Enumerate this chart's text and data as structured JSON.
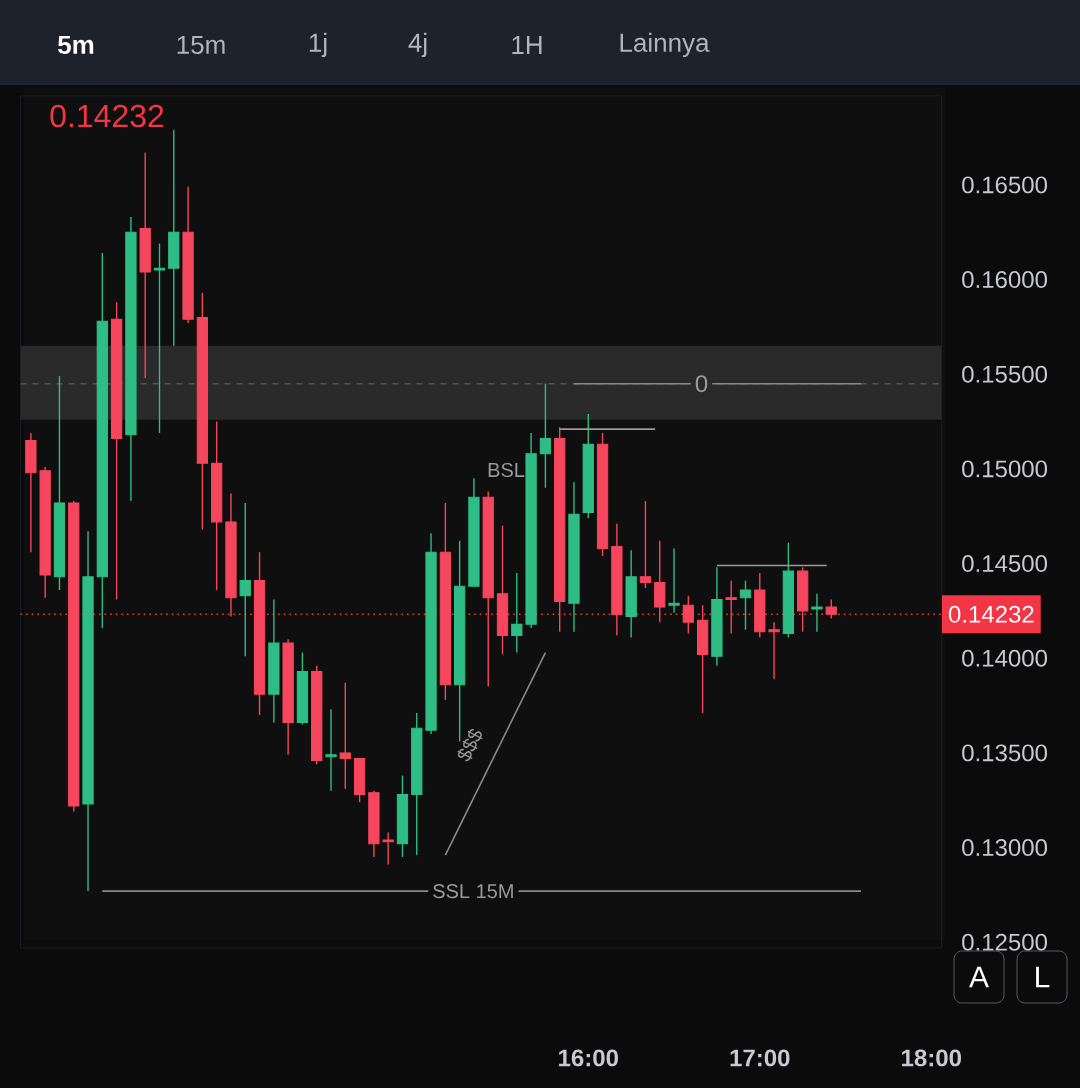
{
  "chart_data": {
    "type": "candlestick",
    "series": [
      {
        "x": [
          12.75,
          12.8333,
          12.9167,
          13,
          13.0833,
          13.1667,
          13.25,
          13.3333,
          13.4167,
          13.5,
          13.5833,
          13.6667,
          13.75,
          13.8333,
          13.9167,
          14,
          14.0833,
          14.1667,
          14.25,
          14.3333,
          14.4167,
          14.5,
          14.5833,
          14.6667,
          14.75,
          14.8333,
          14.9167,
          15,
          15.0833,
          15.1667,
          15.25,
          15.3333,
          15.4167,
          15.5,
          15.5833,
          15.6667,
          15.75,
          15.8333,
          15.9167,
          16,
          16.0833,
          16.1667,
          16.25,
          16.3333,
          16.4167,
          16.5,
          16.5833,
          16.6667,
          16.75,
          16.8333,
          16.9167,
          17,
          17.0833,
          17.1667,
          17.25,
          17.3333,
          17.4167
        ],
        "ohlc": [
          [
            0.1515,
            0.1519,
            0.1456,
            0.1498
          ],
          [
            0.1499,
            0.1501,
            0.1432,
            0.1444
          ],
          [
            0.1443,
            0.1549,
            0.1436,
            0.1482
          ],
          [
            0.1482,
            0.1483,
            0.1319,
            0.1322
          ],
          [
            0.1323,
            0.1467,
            0.1277,
            0.1443
          ],
          [
            0.1443,
            0.1614,
            0.1416,
            0.1578
          ],
          [
            0.1579,
            0.1588,
            0.1431,
            0.1516
          ],
          [
            0.1518,
            0.1633,
            0.1483,
            0.1625
          ],
          [
            0.1627,
            0.1667,
            0.1548,
            0.1604
          ],
          [
            0.1605,
            0.1619,
            0.1519,
            0.1606
          ],
          [
            0.1606,
            0.1679,
            0.1565,
            0.1625
          ],
          [
            0.1625,
            0.1649,
            0.1577,
            0.1579
          ],
          [
            0.158,
            0.1593,
            0.1468,
            0.1503
          ],
          [
            0.1503,
            0.1525,
            0.1436,
            0.1472
          ],
          [
            0.1472,
            0.1487,
            0.1422,
            0.1432
          ],
          [
            0.1433,
            0.1482,
            0.1401,
            0.1441
          ],
          [
            0.1441,
            0.1456,
            0.137,
            0.1381
          ],
          [
            0.1381,
            0.1431,
            0.1366,
            0.1408
          ],
          [
            0.1408,
            0.141,
            0.1349,
            0.1366
          ],
          [
            0.1366,
            0.1403,
            0.1365,
            0.1393
          ],
          [
            0.1393,
            0.1396,
            0.1344,
            0.1346
          ],
          [
            0.1348,
            0.1373,
            0.133,
            0.1349
          ],
          [
            0.135,
            0.1387,
            0.1331,
            0.1347
          ],
          [
            0.1347,
            0.1347,
            0.1324,
            0.1328
          ],
          [
            0.1329,
            0.133,
            0.1295,
            0.1302
          ],
          [
            0.1304,
            0.1308,
            0.1291,
            0.1303
          ],
          [
            0.1302,
            0.1338,
            0.1295,
            0.1328
          ],
          [
            0.1328,
            0.1371,
            0.1296,
            0.1363
          ],
          [
            0.1362,
            0.1466,
            0.136,
            0.1456
          ],
          [
            0.1456,
            0.1482,
            0.1378,
            0.1386
          ],
          [
            0.1386,
            0.1462,
            0.1356,
            0.1438
          ],
          [
            0.1438,
            0.1495,
            0.1438,
            0.1485
          ],
          [
            0.1485,
            0.1488,
            0.1385,
            0.1432
          ],
          [
            0.1434,
            0.147,
            0.1402,
            0.1412
          ],
          [
            0.1412,
            0.1445,
            0.1403,
            0.1418
          ],
          [
            0.1418,
            0.1519,
            0.1416,
            0.1508
          ],
          [
            0.1508,
            0.1545,
            0.149,
            0.1516
          ],
          [
            0.1516,
            0.1522,
            0.1414,
            0.143
          ],
          [
            0.1429,
            0.1493,
            0.1414,
            0.1476
          ],
          [
            0.1477,
            0.1529,
            0.1474,
            0.1513
          ],
          [
            0.1513,
            0.1519,
            0.1454,
            0.1458
          ],
          [
            0.1459,
            0.1471,
            0.1412,
            0.1423
          ],
          [
            0.1422,
            0.1457,
            0.1411,
            0.1443
          ],
          [
            0.1443,
            0.1483,
            0.1437,
            0.144
          ],
          [
            0.144,
            0.1462,
            0.1419,
            0.1427
          ],
          [
            0.1428,
            0.1458,
            0.1424,
            0.1429
          ],
          [
            0.1428,
            0.1433,
            0.1413,
            0.1419
          ],
          [
            0.142,
            0.1428,
            0.1371,
            0.1402
          ],
          [
            0.1401,
            0.1448,
            0.1396,
            0.1431
          ],
          [
            0.1432,
            0.1441,
            0.1413,
            0.1431
          ],
          [
            0.1432,
            0.1441,
            0.1415,
            0.1436
          ],
          [
            0.1436,
            0.1445,
            0.1411,
            0.1414
          ],
          [
            0.1415,
            0.1419,
            0.1389,
            0.1414
          ],
          [
            0.1413,
            0.1461,
            0.1411,
            0.1446
          ],
          [
            0.1446,
            0.1448,
            0.1414,
            0.1425
          ],
          [
            0.1426,
            0.1434,
            0.1414,
            0.1427
          ],
          [
            0.1427,
            0.1431,
            0.1421,
            0.14232
          ]
        ],
        "colors": [
          "#f6465d",
          "#f6465d",
          "#2ebd85",
          "#f6465d",
          "#2ebd85",
          "#2ebd85",
          "#f6465d",
          "#2ebd85",
          "#f6465d",
          "#2ebd85",
          "#2ebd85",
          "#f6465d",
          "#f6465d",
          "#f6465d",
          "#f6465d",
          "#2ebd85",
          "#f6465d",
          "#2ebd85",
          "#f6465d",
          "#2ebd85",
          "#f6465d",
          "#2ebd85",
          "#f6465d",
          "#f6465d",
          "#f6465d",
          "#f6465d",
          "#2ebd85",
          "#2ebd85",
          "#2ebd85",
          "#f6465d",
          "#2ebd85",
          "#2ebd85",
          "#f6465d",
          "#f6465d",
          "#2ebd85",
          "#2ebd85",
          "#2ebd85",
          "#f6465d",
          "#2ebd85",
          "#2ebd85",
          "#f6465d",
          "#f6465d",
          "#2ebd85",
          "#f6465d",
          "#f6465d",
          "#2ebd85",
          "#f6465d",
          "#f6465d",
          "#2ebd85",
          "#f6465d",
          "#2ebd85",
          "#f6465d",
          "#f6465d",
          "#2ebd85",
          "#f6465d",
          "#2ebd85",
          "#f6465d"
        ]
      },
      {
        "type": "line",
        "x": [
          13.1667,
          17.59
        ],
        "values": [
          0.1277,
          0.1277
        ],
        "color": "#8a8a8a"
      },
      {
        "type": "line",
        "x": [
          15.9167,
          17.59
        ],
        "values": [
          0.1545,
          0.1545
        ],
        "color": "#8a8a8a"
      },
      {
        "type": "line",
        "x": [
          15.8333,
          16.39
        ],
        "values": [
          0.1521,
          0.1521
        ],
        "color": "#9a9a9a"
      },
      {
        "type": "line",
        "x": [
          16.75,
          17.39
        ],
        "values": [
          0.1449,
          0.1449
        ],
        "color": "#9a9a9a"
      },
      {
        "type": "line",
        "x": [
          15.1667,
          15.75
        ],
        "values": [
          0.1296,
          0.1403
        ],
        "color": "#8a8a8a"
      }
    ],
    "xlim": [
      12.69,
      18.06
    ],
    "xticks": [
      {
        "value": 16,
        "label": "16:00"
      },
      {
        "value": 17,
        "label": "17:00"
      },
      {
        "value": 18,
        "label": "18:00"
      }
    ],
    "ylim": [
      0.1247,
      0.1697
    ],
    "yticks": [
      {
        "value": 0.125,
        "label": "0.12500"
      },
      {
        "value": 0.13,
        "label": "0.13000"
      },
      {
        "value": 0.135,
        "label": "0.13500"
      },
      {
        "value": 0.14,
        "label": "0.14000"
      },
      {
        "value": 0.145,
        "label": "0.14500"
      },
      {
        "value": 0.15,
        "label": "0.15000"
      },
      {
        "value": 0.155,
        "label": "0.15500"
      },
      {
        "value": 0.16,
        "label": "0.16000"
      },
      {
        "value": 0.165,
        "label": "0.16500"
      }
    ],
    "bands": [
      {
        "axis": "y",
        "from": 0.1526,
        "to": 0.1565,
        "color": "#2a2a2a"
      }
    ],
    "ref_lines": [
      {
        "axis": "y",
        "value": 0.1545,
        "color": "#555555",
        "line_style": "dashed"
      },
      {
        "axis": "y",
        "value": 0.14232,
        "label": "0.14232",
        "color": "#f23645",
        "line_style": "dotted"
      }
    ],
    "annotations": [
      "0.14232",
      "5m",
      "15m",
      "1j",
      "4j",
      "1H",
      "Lainnya",
      "A",
      "L",
      "BSL",
      "$$$",
      {
        "text": "SSL 15M",
        "x": 15.33,
        "y": 0.1277
      },
      {
        "text": "0",
        "x": 16.66,
        "y": 0.1545
      }
    ]
  }
}
